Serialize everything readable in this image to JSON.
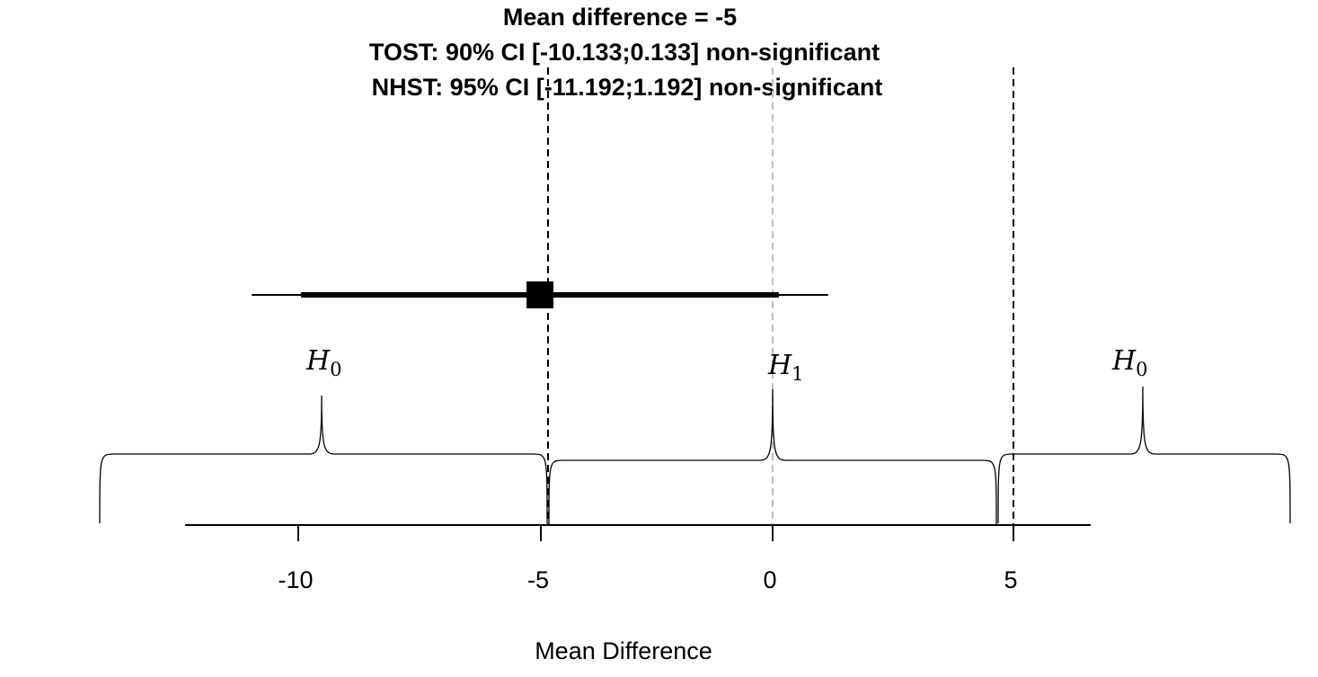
{
  "chart_data": {
    "type": "forest",
    "title_lines": [
      "Mean difference = -5",
      "TOST: 90% CI [-10.133;0.133] non-significant",
      "NHST: 95% CI [-11.192;1.192] non-significant"
    ],
    "xlabel": "Mean Difference",
    "xlim": [
      -12.6,
      6.8
    ],
    "xticks": [
      -10,
      -5,
      0,
      5
    ],
    "xtick_labels": [
      "-10",
      "-5",
      "0",
      "5"
    ],
    "estimate": -5,
    "ci90": [
      -10.133,
      0.133
    ],
    "ci95": [
      -11.192,
      1.192
    ],
    "equivalence_bounds": [
      -5,
      5
    ],
    "reference_line": 0,
    "regions": [
      {
        "label": "H",
        "subscript": "0",
        "from": -14.4,
        "to": -4.8
      },
      {
        "label": "H",
        "subscript": "1",
        "from": -4.8,
        "to": 4.8
      },
      {
        "label": "H",
        "subscript": "0",
        "from": 4.8,
        "to": 11.1
      }
    ],
    "colors": {
      "estimate": "#000000",
      "bounds": "#000000",
      "reference": "#bfbfbf"
    }
  }
}
